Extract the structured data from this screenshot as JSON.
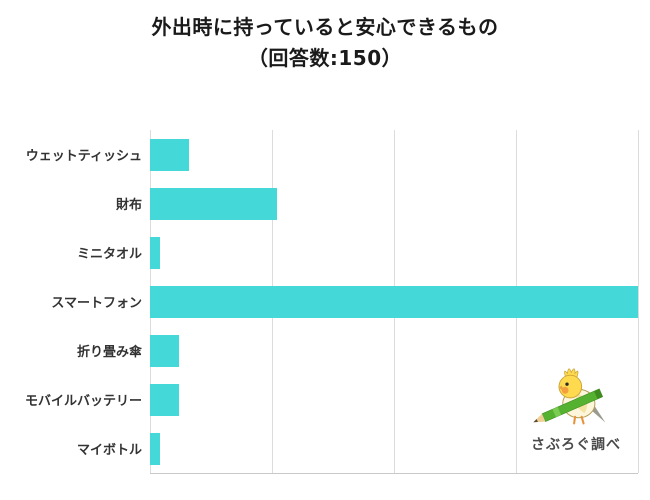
{
  "title": {
    "line1": "外出時に持っていると安心できるもの",
    "line2": "（回答数:150）"
  },
  "chart_data": {
    "type": "bar",
    "orientation": "horizontal",
    "title": "外出時に持っていると安心できるもの（回答数:150）",
    "response_count": 150,
    "categories": [
      "ウェットティッシュ",
      "財布",
      "ミニタオル",
      "スマートフォン",
      "折り畳み傘",
      "モバイルバッテリー",
      "マイボトル"
    ],
    "values": [
      8,
      26,
      2,
      100,
      6,
      6,
      2
    ],
    "xlim": [
      0,
      100
    ],
    "xlabel": "",
    "ylabel": "",
    "grid": true,
    "tick_labels_visible": false,
    "legend": false,
    "note": "axis has no numeric tick labels; values estimated as percent of longest bar (スマートフォン = 100)"
  },
  "branding": {
    "credit": "さぶろぐ調べ",
    "mascot_icon": "cockatiel-with-pencil-icon"
  },
  "colors": {
    "bar": "#45d8d8",
    "grid": "#dcdcdc",
    "axis": "#c9c9c9",
    "title_text": "#1a1a1a",
    "label_text": "#333333",
    "credit_text": "#4a4a4a"
  }
}
